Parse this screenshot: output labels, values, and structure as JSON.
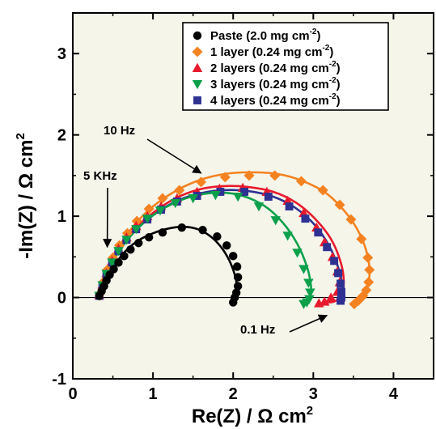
{
  "chart_data": {
    "type": "scatter",
    "xlabel": "Re(Z) / Ω cm",
    "xlabel_sup": "2",
    "ylabel": "-Im(Z) / Ω cm",
    "ylabel_sup": "2",
    "xlim": [
      0,
      4.5
    ],
    "ylim": [
      -1,
      3.5
    ],
    "x_ticks": [
      0,
      1,
      2,
      3,
      4
    ],
    "y_ticks": [
      -1,
      0,
      1,
      2,
      3
    ],
    "grid": false,
    "legend_position": "top-right",
    "zero_line": true,
    "colors": {
      "background": "#f5f5ea"
    },
    "annotations": [
      {
        "text": "10 Hz",
        "x": 0.4,
        "y": 2.05,
        "arrow_to": [
          1.6,
          1.53
        ]
      },
      {
        "text": "5 KHz",
        "x": 0.08,
        "y": 1.47,
        "arrow_to": [
          0.43,
          0.62
        ]
      },
      {
        "text": "0.1 Hz",
        "x": 2.06,
        "y": -0.43,
        "arrow_to": [
          3.17,
          -0.22
        ]
      }
    ],
    "series": [
      {
        "name": "Paste (2.0 mg cm",
        "name_sup": "-2",
        "name_end": ")",
        "color": "#000000",
        "marker": "circle",
        "fit_x": [
          0.32,
          0.38,
          0.48,
          0.62,
          0.8,
          1.0,
          1.2,
          1.38,
          1.56,
          1.72,
          1.85,
          1.95,
          2.02,
          2.05,
          2.04,
          2.0
        ],
        "fit_y": [
          0.0,
          0.15,
          0.33,
          0.53,
          0.69,
          0.79,
          0.85,
          0.87,
          0.84,
          0.75,
          0.62,
          0.46,
          0.28,
          0.12,
          0.02,
          -0.06
        ],
        "x": [
          0.33,
          0.36,
          0.39,
          0.42,
          0.46,
          0.51,
          0.57,
          0.64,
          0.72,
          0.82,
          0.95,
          1.12,
          1.36,
          1.62,
          1.8,
          1.92,
          2.0,
          2.05,
          2.06,
          2.06,
          2.04,
          2.02,
          2.0
        ],
        "y": [
          0.02,
          0.08,
          0.14,
          0.21,
          0.28,
          0.35,
          0.43,
          0.51,
          0.59,
          0.67,
          0.74,
          0.8,
          0.86,
          0.83,
          0.75,
          0.64,
          0.51,
          0.38,
          0.25,
          0.14,
          0.06,
          0.0,
          -0.06
        ]
      },
      {
        "name": "1 layer (0.24 mg cm",
        "name_sup": "-2",
        "name_end": ")",
        "color": "#f58220",
        "marker": "diamond",
        "fit_x": [
          0.32,
          0.4,
          0.55,
          0.75,
          1.0,
          1.3,
          1.6,
          1.9,
          2.2,
          2.55,
          2.85,
          3.15,
          3.4,
          3.58,
          3.68,
          3.7,
          3.65,
          3.55,
          3.5
        ],
        "fit_y": [
          0.0,
          0.28,
          0.58,
          0.87,
          1.12,
          1.32,
          1.45,
          1.52,
          1.54,
          1.52,
          1.44,
          1.29,
          1.05,
          0.78,
          0.5,
          0.26,
          0.07,
          -0.06,
          -0.09
        ],
        "x": [
          0.34,
          0.38,
          0.43,
          0.5,
          0.58,
          0.68,
          0.8,
          0.95,
          1.12,
          1.33,
          1.6,
          1.9,
          2.2,
          2.52,
          2.85,
          3.12,
          3.33,
          3.47,
          3.6,
          3.68,
          3.7,
          3.69,
          3.66,
          3.62,
          3.56,
          3.51
        ],
        "y": [
          0.05,
          0.19,
          0.34,
          0.49,
          0.64,
          0.79,
          0.94,
          1.09,
          1.22,
          1.32,
          1.42,
          1.48,
          1.5,
          1.5,
          1.43,
          1.32,
          1.14,
          0.96,
          0.72,
          0.49,
          0.34,
          0.19,
          0.09,
          0.02,
          -0.04,
          -0.08
        ]
      },
      {
        "name": "2 layers (0.24 mg cm",
        "name_sup": "-2",
        "name_end": ")",
        "color": "#e8192c",
        "marker": "triangle-up",
        "fit_x": [
          0.32,
          0.4,
          0.55,
          0.75,
          1.0,
          1.28,
          1.58,
          1.88,
          2.18,
          2.5,
          2.78,
          3.02,
          3.22,
          3.34,
          3.38,
          3.35,
          3.26,
          3.14
        ],
        "fit_y": [
          0.0,
          0.27,
          0.55,
          0.82,
          1.04,
          1.22,
          1.33,
          1.37,
          1.36,
          1.3,
          1.17,
          0.97,
          0.72,
          0.44,
          0.2,
          0.03,
          -0.05,
          -0.06
        ],
        "x": [
          0.33,
          0.37,
          0.42,
          0.49,
          0.57,
          0.67,
          0.79,
          0.93,
          1.1,
          1.3,
          1.55,
          1.83,
          2.12,
          2.42,
          2.68,
          2.88,
          3.04,
          3.14,
          3.24,
          3.3,
          3.33,
          3.3,
          3.22,
          3.14,
          3.07
        ],
        "y": [
          0.03,
          0.16,
          0.3,
          0.45,
          0.6,
          0.74,
          0.88,
          1.0,
          1.12,
          1.22,
          1.3,
          1.34,
          1.35,
          1.3,
          1.19,
          1.04,
          0.86,
          0.68,
          0.5,
          0.32,
          0.19,
          0.07,
          0.0,
          -0.05,
          -0.07
        ]
      },
      {
        "name": "3 layers (0.24 mg cm",
        "name_sup": "-2",
        "name_end": ")",
        "color": "#0ca04b",
        "marker": "triangle-down",
        "fit_x": [
          0.32,
          0.4,
          0.55,
          0.75,
          1.0,
          1.28,
          1.56,
          1.84,
          2.12,
          2.4,
          2.62,
          2.8,
          2.92,
          2.97,
          2.96,
          2.92,
          2.86
        ],
        "fit_y": [
          0.0,
          0.26,
          0.53,
          0.79,
          1.01,
          1.17,
          1.26,
          1.29,
          1.25,
          1.12,
          0.92,
          0.66,
          0.38,
          0.15,
          0.01,
          -0.05,
          -0.06
        ],
        "x": [
          0.33,
          0.37,
          0.42,
          0.49,
          0.57,
          0.67,
          0.79,
          0.93,
          1.09,
          1.28,
          1.5,
          1.78,
          2.06,
          2.32,
          2.53,
          2.68,
          2.8,
          2.88,
          2.94,
          2.96,
          2.95,
          2.92,
          2.88
        ],
        "y": [
          0.02,
          0.15,
          0.29,
          0.43,
          0.57,
          0.71,
          0.84,
          0.97,
          1.07,
          1.16,
          1.22,
          1.26,
          1.24,
          1.12,
          0.95,
          0.76,
          0.55,
          0.35,
          0.18,
          0.06,
          -0.02,
          -0.06,
          -0.08
        ]
      },
      {
        "name": "4 layers (0.24 mg cm",
        "name_sup": "-2",
        "name_end": ")",
        "color": "#2e3192",
        "marker": "square",
        "fit_x": [
          0.32,
          0.4,
          0.55,
          0.75,
          1.0,
          1.28,
          1.58,
          1.88,
          2.18,
          2.5,
          2.78,
          3.02,
          3.2,
          3.31,
          3.36,
          3.36,
          3.34
        ],
        "fit_y": [
          0.0,
          0.26,
          0.53,
          0.79,
          1.01,
          1.18,
          1.28,
          1.32,
          1.31,
          1.24,
          1.1,
          0.89,
          0.63,
          0.37,
          0.15,
          0.02,
          -0.03
        ],
        "x": [
          0.33,
          0.37,
          0.42,
          0.49,
          0.57,
          0.67,
          0.79,
          0.93,
          1.1,
          1.3,
          1.55,
          1.84,
          2.14,
          2.44,
          2.7,
          2.9,
          3.06,
          3.17,
          3.26,
          3.31,
          3.34,
          3.35,
          3.35,
          3.34
        ],
        "y": [
          0.02,
          0.15,
          0.29,
          0.43,
          0.57,
          0.71,
          0.84,
          0.96,
          1.08,
          1.18,
          1.25,
          1.3,
          1.3,
          1.24,
          1.12,
          0.97,
          0.8,
          0.62,
          0.45,
          0.3,
          0.17,
          0.07,
          0.0,
          -0.04
        ]
      }
    ]
  }
}
